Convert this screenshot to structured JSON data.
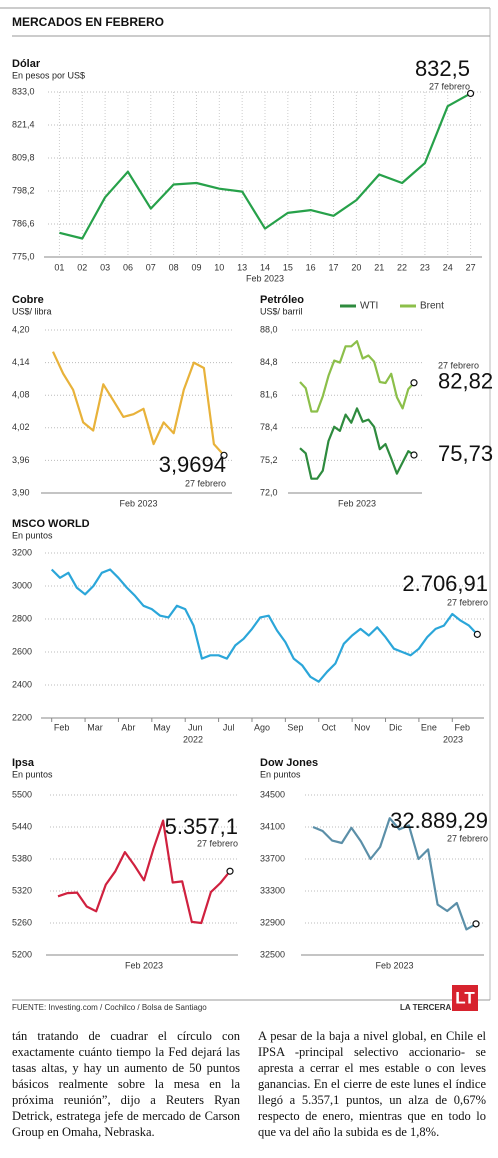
{
  "header": {
    "title": "MERCADOS EN FEBRERO"
  },
  "chart_data": [
    {
      "type": "line",
      "title": "Dólar",
      "subtitle": "En pesos por US$",
      "xlabel": "Feb 2023",
      "color": "#27a14a",
      "categories": [
        "01",
        "02",
        "03",
        "06",
        "07",
        "08",
        "09",
        "10",
        "13",
        "14",
        "15",
        "16",
        "17",
        "20",
        "21",
        "22",
        "23",
        "24",
        "27"
      ],
      "values": [
        783.5,
        781.5,
        796,
        805,
        792,
        800.5,
        801,
        799,
        798,
        785,
        790.5,
        791.5,
        789.5,
        795,
        804,
        801,
        808,
        828,
        832.5
      ],
      "value_labels": [
        null,
        null,
        null,
        null,
        null,
        null,
        null,
        null,
        null,
        null,
        null,
        null,
        null,
        null,
        null,
        null,
        null,
        null,
        "832,5"
      ],
      "date_label": "27 febrero",
      "ylim": [
        775,
        833
      ],
      "yticks": [
        {
          "value": 775,
          "label": "775,0"
        },
        {
          "value": 786.6,
          "label": "786,6"
        },
        {
          "value": 798.2,
          "label": "798,2"
        },
        {
          "value": 809.8,
          "label": "809,8"
        },
        {
          "value": 821.4,
          "label": "821,4"
        },
        {
          "value": 833,
          "label": "833,0"
        }
      ],
      "grid": true
    },
    {
      "type": "line",
      "title": "Cobre",
      "subtitle": "US$/ libra",
      "xlabel": "Feb 2023",
      "color": "#e8b23a",
      "values": [
        4.16,
        4.12,
        4.09,
        4.03,
        4.015,
        4.1,
        4.07,
        4.04,
        4.045,
        4.055,
        3.99,
        4.03,
        4.01,
        4.09,
        4.14,
        4.13,
        3.99,
        3.9694
      ],
      "value_labels": [
        null,
        null,
        null,
        null,
        null,
        null,
        null,
        null,
        null,
        null,
        null,
        null,
        null,
        null,
        null,
        null,
        null,
        "3,9694"
      ],
      "date_label": "27 febrero",
      "ylim": [
        3.9,
        4.2
      ],
      "yticks": [
        {
          "value": 3.9,
          "label": "3,90"
        },
        {
          "value": 3.96,
          "label": "3,96"
        },
        {
          "value": 4.02,
          "label": "4,02"
        },
        {
          "value": 4.08,
          "label": "4,08"
        },
        {
          "value": 4.14,
          "label": "4,14"
        },
        {
          "value": 4.2,
          "label": "4,20"
        }
      ],
      "grid": true
    },
    {
      "type": "line",
      "title": "Petróleo",
      "subtitle": "US$/ barril",
      "xlabel": "Feb 2023",
      "legend": true,
      "date_label": "27 febrero",
      "series": [
        {
          "name": "WTI",
          "color": "#2e8b3e",
          "values": [
            76.4,
            75.9,
            73.4,
            73.4,
            74.2,
            77.1,
            78.5,
            78.1,
            79.7,
            78.9,
            80.3,
            79,
            79.2,
            78.5,
            76.3,
            76.8,
            75.4,
            73.9,
            75,
            76.1,
            75.73
          ],
          "value_labels": [
            null,
            null,
            null,
            null,
            null,
            null,
            null,
            null,
            null,
            null,
            null,
            null,
            null,
            null,
            null,
            null,
            null,
            null,
            null,
            null,
            "75,73"
          ]
        },
        {
          "name": "Brent",
          "color": "#8cbf4a",
          "values": [
            82.9,
            82.3,
            80,
            80,
            81.5,
            83.5,
            85,
            84.8,
            86.4,
            86.4,
            86.9,
            85.2,
            85.5,
            84.9,
            82.9,
            82.8,
            83.7,
            81.4,
            80.3,
            82.2,
            82.82
          ],
          "value_labels": [
            null,
            null,
            null,
            null,
            null,
            null,
            null,
            null,
            null,
            null,
            null,
            null,
            null,
            null,
            null,
            null,
            null,
            null,
            null,
            null,
            "82,82"
          ]
        }
      ],
      "ylim": [
        72,
        88
      ],
      "yticks": [
        {
          "value": 72,
          "label": "72,0"
        },
        {
          "value": 75.2,
          "label": "75,2"
        },
        {
          "value": 78.4,
          "label": "78,4"
        },
        {
          "value": 81.6,
          "label": "81,6"
        },
        {
          "value": 84.8,
          "label": "84,8"
        },
        {
          "value": 88,
          "label": "88,0"
        }
      ],
      "grid": true
    },
    {
      "type": "line",
      "title": "MSCO WORLD",
      "subtitle": "En puntos",
      "color": "#2ba6d9",
      "annotations": [
        "2022",
        "2023"
      ],
      "x": [
        0,
        0.25,
        0.5,
        0.75,
        1,
        1.25,
        1.5,
        1.75,
        2,
        2.25,
        2.5,
        2.75,
        3,
        3.25,
        3.5,
        3.75,
        4,
        4.25,
        4.5,
        4.75,
        5,
        5.25,
        5.5,
        5.75,
        6,
        6.25,
        6.5,
        6.75,
        7,
        7.25,
        7.5,
        7.75,
        8,
        8.25,
        8.5,
        8.75,
        9,
        9.25,
        9.5,
        9.75,
        10,
        10.25,
        10.5,
        10.75,
        11,
        11.25,
        11.5,
        11.75,
        12,
        12.25,
        12.5,
        12.75
      ],
      "values": [
        3100,
        3050,
        3080,
        2990,
        2950,
        3000,
        3080,
        3100,
        3050,
        2990,
        2940,
        2880,
        2860,
        2820,
        2810,
        2880,
        2860,
        2760,
        2560,
        2580,
        2580,
        2560,
        2640,
        2680,
        2740,
        2810,
        2820,
        2730,
        2660,
        2560,
        2520,
        2450,
        2420,
        2480,
        2530,
        2650,
        2700,
        2740,
        2700,
        2750,
        2690,
        2620,
        2600,
        2580,
        2620,
        2690,
        2740,
        2760,
        2830,
        2790,
        2760,
        2706.91
      ],
      "value_labels": [
        null,
        null,
        null,
        null,
        null,
        null,
        null,
        null,
        null,
        null,
        null,
        null,
        null,
        null,
        null,
        null,
        null,
        null,
        null,
        null,
        null,
        null,
        null,
        null,
        null,
        null,
        null,
        null,
        null,
        null,
        null,
        null,
        null,
        null,
        null,
        null,
        null,
        null,
        null,
        null,
        null,
        null,
        null,
        null,
        null,
        null,
        null,
        null,
        null,
        null,
        null,
        "2.706,91"
      ],
      "date_label": "27 febrero",
      "xlim": [
        -0.2,
        12.95
      ],
      "xticks": [
        {
          "value": 0,
          "label": "Feb"
        },
        {
          "value": 1,
          "label": "Mar"
        },
        {
          "value": 2,
          "label": "Abr"
        },
        {
          "value": 3,
          "label": "May"
        },
        {
          "value": 4,
          "label": "Jun"
        },
        {
          "value": 5,
          "label": "Jul"
        },
        {
          "value": 6,
          "label": "Ago"
        },
        {
          "value": 7,
          "label": "Sep"
        },
        {
          "value": 8,
          "label": "Oct"
        },
        {
          "value": 9,
          "label": "Nov"
        },
        {
          "value": 10,
          "label": "Dic"
        },
        {
          "value": 11,
          "label": "Ene"
        },
        {
          "value": 12,
          "label": "Feb"
        }
      ],
      "ylim": [
        2200,
        3200
      ],
      "yticks": [
        2200,
        2400,
        2600,
        2800,
        3000,
        3200
      ],
      "grid": true
    },
    {
      "type": "line",
      "title": "Ipsa",
      "subtitle": "En puntos",
      "xlabel": "Feb 2023",
      "color": "#d0213f",
      "values": [
        5310,
        5316,
        5317,
        5291,
        5282,
        5332,
        5357,
        5393,
        5368,
        5340,
        5400,
        5452,
        5336,
        5338,
        5262,
        5260,
        5318,
        5335,
        5357.1
      ],
      "value_labels": [
        null,
        null,
        null,
        null,
        null,
        null,
        null,
        null,
        null,
        null,
        null,
        null,
        null,
        null,
        null,
        null,
        null,
        null,
        "5.357,1"
      ],
      "date_label": "27 febrero",
      "ylim": [
        5200,
        5500
      ],
      "yticks": [
        5200,
        5260,
        5320,
        5380,
        5440,
        5500
      ],
      "grid": true
    },
    {
      "type": "line",
      "title": "Dow Jones",
      "subtitle": "En puntos",
      "xlabel": "Feb 2023",
      "color": "#5b8fa8",
      "values": [
        34100,
        34050,
        33930,
        33900,
        34090,
        33920,
        33700,
        33850,
        34210,
        34070,
        34120,
        33700,
        33820,
        33130,
        33050,
        33150,
        32820,
        32889.29
      ],
      "value_labels": [
        null,
        null,
        null,
        null,
        null,
        null,
        null,
        null,
        null,
        null,
        null,
        null,
        null,
        null,
        null,
        null,
        null,
        "32.889,29"
      ],
      "date_label": "27 febrero",
      "ylim": [
        32500,
        34500
      ],
      "yticks": [
        32500,
        32900,
        33300,
        33700,
        34100,
        34500
      ],
      "grid": true
    }
  ],
  "footer": {
    "source": "FUENTE: Investing.com / Cochilco / Bolsa de Santiago",
    "brand": "LA TERCERA",
    "logo": "LT"
  },
  "article": {
    "columns": [
      "tán tratando de cuadrar el círculo con exactamente cuánto tiempo la Fed dejará las tasas altas, y hay un aumento de 50 puntos básicos realmente sobre la mesa en la próxima reunión”, dijo a Reuters Ryan Detrick, estratega jefe de mercado de Carson Group en Omaha, Nebraska.",
      "A pesar de la baja a nivel global, en Chile el IPSA -principal selectivo accionario- se apresta a cerrar el mes estable o con leves ganancias. En el cierre de este lunes el índice llegó a 5.357,1 puntos, un alza de 0,67% respecto de enero, mientras que en todo lo que va del año la subida es de 1,8%."
    ]
  }
}
